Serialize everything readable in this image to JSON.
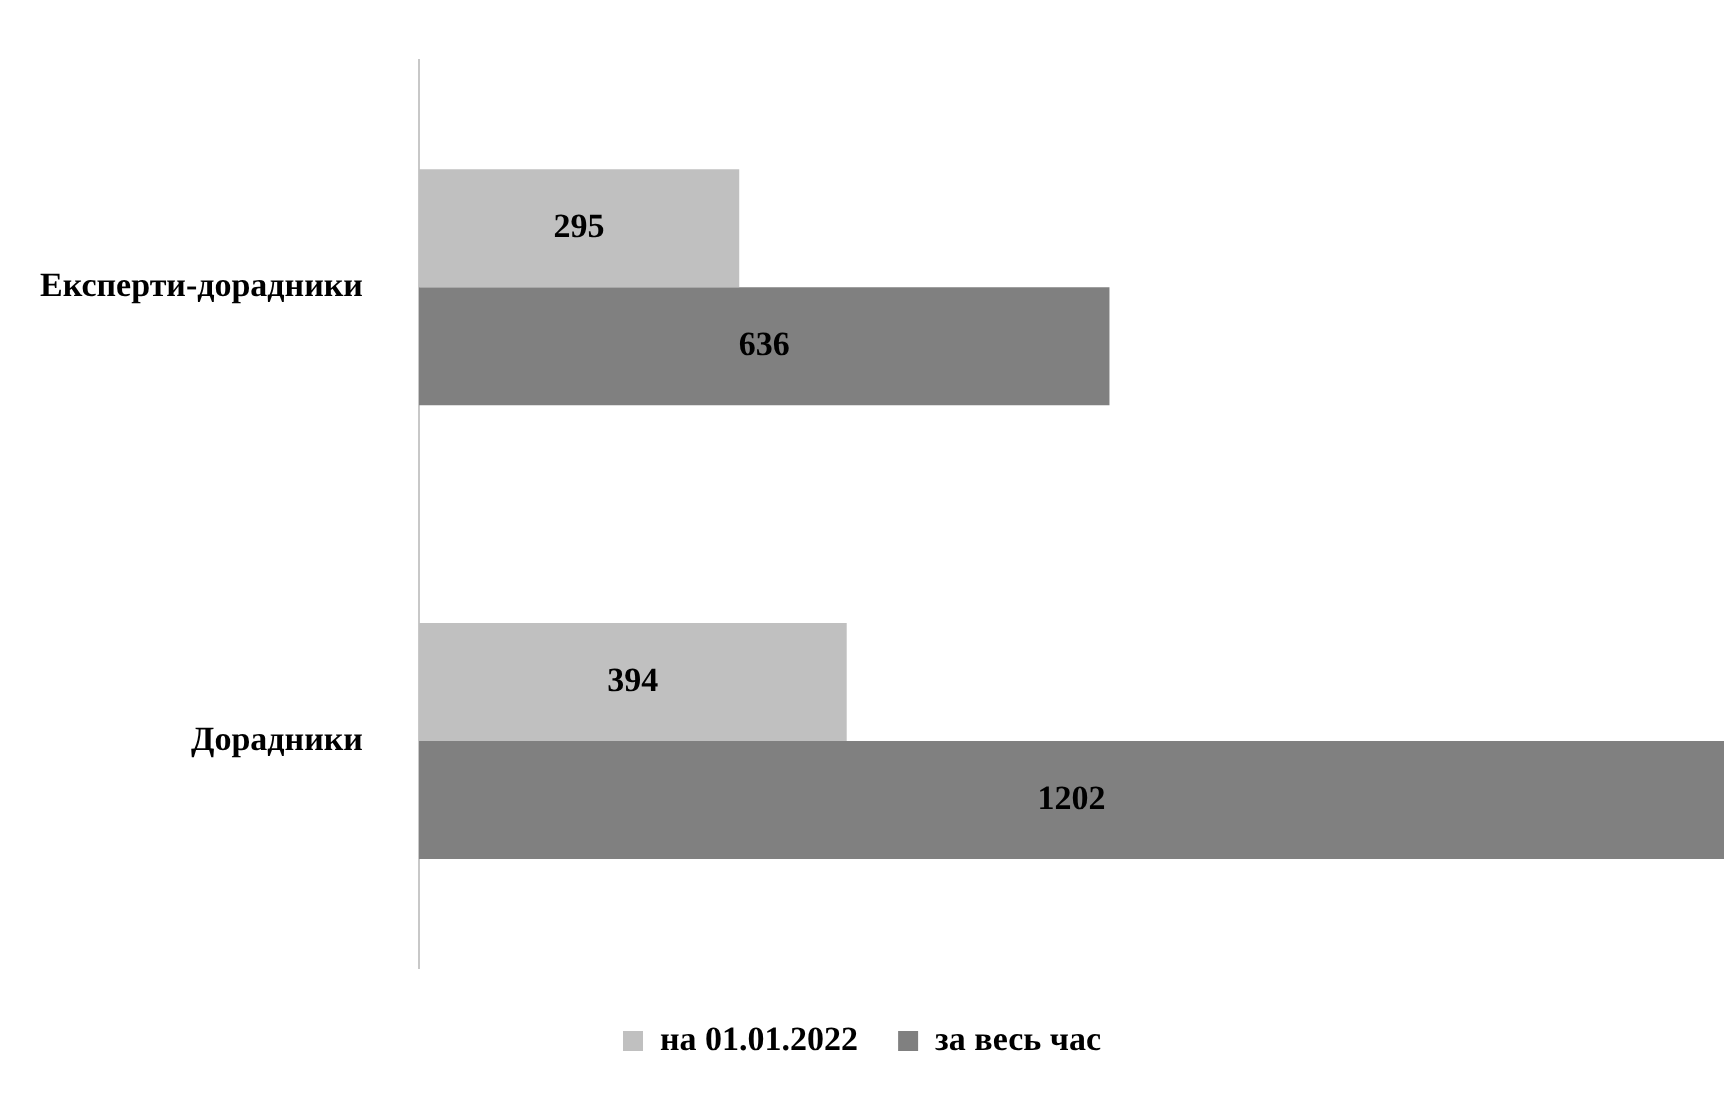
{
  "chart_data": {
    "type": "bar",
    "orientation": "horizontal",
    "categories": [
      "Експерти-дорадники",
      "Дорадники"
    ],
    "series": [
      {
        "name": "на 01.01.2022",
        "color": "#c0c0c0",
        "values": [
          295,
          394
        ]
      },
      {
        "name": "за весь час",
        "color": "#808080",
        "values": [
          636,
          1202
        ]
      }
    ],
    "data_labels": true,
    "grid": false,
    "legend": "bottom",
    "tick_labels": "y"
  }
}
